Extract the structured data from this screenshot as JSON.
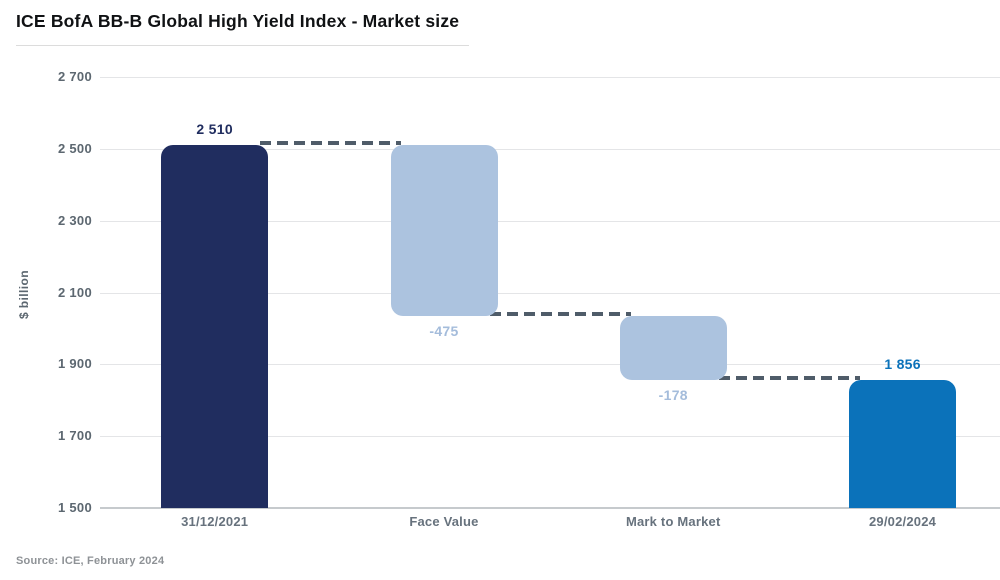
{
  "page": {
    "title": "ICE BofA BB-B Global High Yield Index - Market size",
    "source": "Source: ICE, February 2024"
  },
  "chart_data": {
    "type": "bar",
    "subtype": "waterfall",
    "title": "ICE BofA BB-B Global High Yield Index - Market size",
    "xlabel": "",
    "ylabel": "$ billion",
    "ylim": [
      1500,
      2700
    ],
    "grid": true,
    "legend": "none",
    "y_ticks": [
      {
        "value": 2700,
        "label": "2 700"
      },
      {
        "value": 2500,
        "label": "2 500"
      },
      {
        "value": 2300,
        "label": "2 300"
      },
      {
        "value": 2100,
        "label": "2 100"
      },
      {
        "value": 1900,
        "label": "1 900"
      },
      {
        "value": 1700,
        "label": "1 700"
      },
      {
        "value": 1500,
        "label": "1 500"
      }
    ],
    "categories": [
      "31/12/2021",
      "Face Value",
      "Mark to Market",
      "29/02/2024"
    ],
    "bars": [
      {
        "category": "31/12/2021",
        "role": "total",
        "start": 1500,
        "end": 2510,
        "value": 2510,
        "value_label": "2 510",
        "label_position": "above",
        "color": "#202D5F",
        "label_color": "#202D5F"
      },
      {
        "category": "Face Value",
        "role": "decrease",
        "start": 2510,
        "end": 2035,
        "value": -475,
        "value_label": "-475",
        "label_position": "below",
        "color": "#ACC3DF",
        "label_color": "#A4BCDB"
      },
      {
        "category": "Mark to Market",
        "role": "decrease",
        "start": 2035,
        "end": 1857,
        "value": -178,
        "value_label": "-178",
        "label_position": "below",
        "color": "#ACC3DF",
        "label_color": "#A4BCDB"
      },
      {
        "category": "29/02/2024",
        "role": "total",
        "start": 1500,
        "end": 1856,
        "value": 1856,
        "value_label": "1 856",
        "label_position": "above",
        "color": "#0B72BA",
        "label_color": "#0B72BA"
      }
    ],
    "connectors": [
      {
        "level": 2510,
        "from_bar": 0,
        "to_bar": 1
      },
      {
        "level": 2035,
        "from_bar": 1,
        "to_bar": 2
      },
      {
        "level": 1857,
        "from_bar": 2,
        "to_bar": 3
      }
    ],
    "colors": {
      "grid": "#E4E5E7",
      "axis_line": "#C6CACD",
      "tick_label": "#5C6770",
      "category_label": "#67727D",
      "connector": "#4F5C69",
      "title": "#101214",
      "source": "#8E9296"
    }
  }
}
